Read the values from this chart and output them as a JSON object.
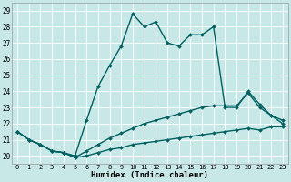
{
  "xlabel": "Humidex (Indice chaleur)",
  "bg_color": "#c8e8e8",
  "plot_bg_color": "#c8e8e8",
  "line_color": "#006060",
  "grid_color": "#ffffff",
  "xlim": [
    -0.5,
    23.5
  ],
  "ylim": [
    19.5,
    29.5
  ],
  "xticks": [
    0,
    1,
    2,
    3,
    4,
    5,
    6,
    7,
    8,
    9,
    10,
    11,
    12,
    13,
    14,
    15,
    16,
    17,
    18,
    19,
    20,
    21,
    22,
    23
  ],
  "yticks": [
    20,
    21,
    22,
    23,
    24,
    25,
    26,
    27,
    28,
    29
  ],
  "lines": [
    {
      "x": [
        0,
        1,
        2,
        3,
        4,
        5,
        6,
        7,
        8,
        9,
        10,
        11,
        12,
        13,
        14,
        15,
        16,
        17,
        18,
        19,
        20,
        21,
        22,
        23
      ],
      "y": [
        21.5,
        21.0,
        20.7,
        20.3,
        20.2,
        20.0,
        22.2,
        24.3,
        25.6,
        26.8,
        28.8,
        28.0,
        28.3,
        27.0,
        26.8,
        27.5,
        27.5,
        28.0,
        23.0,
        23.0,
        24.0,
        23.2,
        22.5,
        22.0
      ],
      "lw": 1.0
    },
    {
      "x": [
        0,
        1,
        2,
        3,
        4,
        5,
        6,
        7,
        8,
        9,
        10,
        11,
        12,
        13,
        14,
        15,
        16,
        17,
        18,
        19,
        20,
        21,
        22,
        23
      ],
      "y": [
        21.5,
        21.0,
        20.7,
        20.3,
        20.2,
        19.9,
        20.3,
        20.7,
        21.1,
        21.4,
        21.7,
        22.0,
        22.2,
        22.4,
        22.6,
        22.8,
        23.0,
        23.1,
        23.1,
        23.1,
        23.9,
        23.0,
        22.5,
        22.2
      ],
      "lw": 1.0
    },
    {
      "x": [
        0,
        1,
        2,
        3,
        4,
        5,
        6,
        7,
        8,
        9,
        10,
        11,
        12,
        13,
        14,
        15,
        16,
        17,
        18,
        19,
        20,
        21,
        22,
        23
      ],
      "y": [
        21.5,
        21.0,
        20.7,
        20.3,
        20.2,
        19.9,
        20.0,
        20.2,
        20.4,
        20.5,
        20.7,
        20.8,
        20.9,
        21.0,
        21.1,
        21.2,
        21.3,
        21.4,
        21.5,
        21.6,
        21.7,
        21.6,
        21.8,
        21.8
      ],
      "lw": 1.0
    }
  ]
}
